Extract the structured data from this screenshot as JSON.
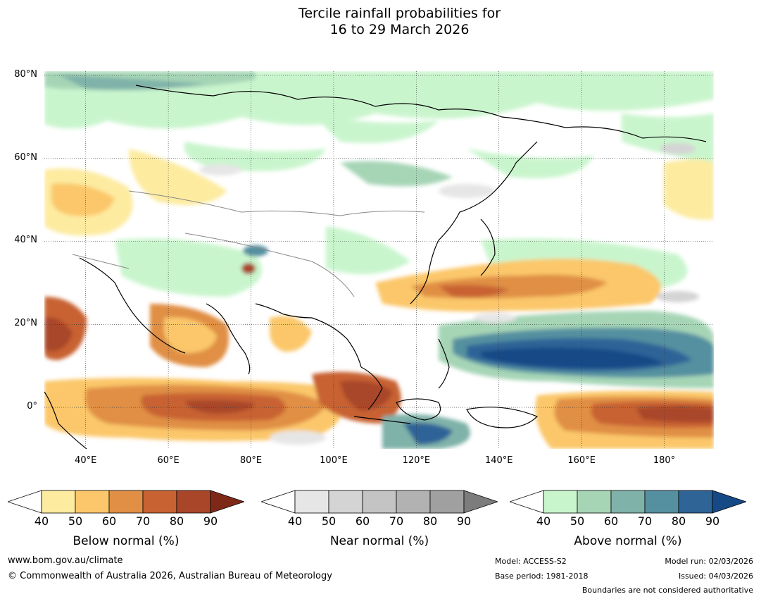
{
  "title": {
    "line1": "Tercile rainfall probabilities for",
    "line2": "16 to 29 March 2026"
  },
  "map": {
    "lat_labels": [
      "80°N",
      "60°N",
      "40°N",
      "20°N",
      "0°"
    ],
    "lon_labels": [
      "40°E",
      "60°E",
      "80°E",
      "100°E",
      "120°E",
      "140°E",
      "160°E",
      "180°"
    ],
    "extent": {
      "lon_min": 30,
      "lon_max": 192,
      "lat_min": -10,
      "lat_max": 81
    },
    "gridlines": true
  },
  "legends": [
    {
      "title": "Below normal (%)",
      "ticks": [
        "40",
        "50",
        "60",
        "70",
        "80",
        "90"
      ],
      "colors": [
        "#ffffff",
        "#fdeba0",
        "#fbc76a",
        "#e08f45",
        "#c86232",
        "#a94629",
        "#7e2918"
      ]
    },
    {
      "title": "Near normal (%)",
      "ticks": [
        "40",
        "50",
        "60",
        "70",
        "80",
        "90"
      ],
      "colors": [
        "#ffffff",
        "#e6e6e6",
        "#d4d4d4",
        "#c4c4c4",
        "#b2b2b2",
        "#a0a0a0",
        "#7c7c7c"
      ]
    },
    {
      "title": "Above normal (%)",
      "ticks": [
        "40",
        "50",
        "60",
        "70",
        "80",
        "90"
      ],
      "colors": [
        "#ffffff",
        "#c9f5cd",
        "#a6d5b6",
        "#7fb2a9",
        "#5590a0",
        "#2f6497",
        "#164a86"
      ]
    }
  ],
  "footer": {
    "website": "www.bom.gov.au/climate",
    "copyright": "© Commonwealth of Australia 2026, Australian Bureau of Meteorology",
    "model": "Model: ACCESS-S2",
    "base_period": "Base period: 1981-2018",
    "model_run": "Model run: 02/03/2026",
    "issued": "Issued: 04/03/2026",
    "disclaimer": "Boundaries are not considered authoritative"
  }
}
